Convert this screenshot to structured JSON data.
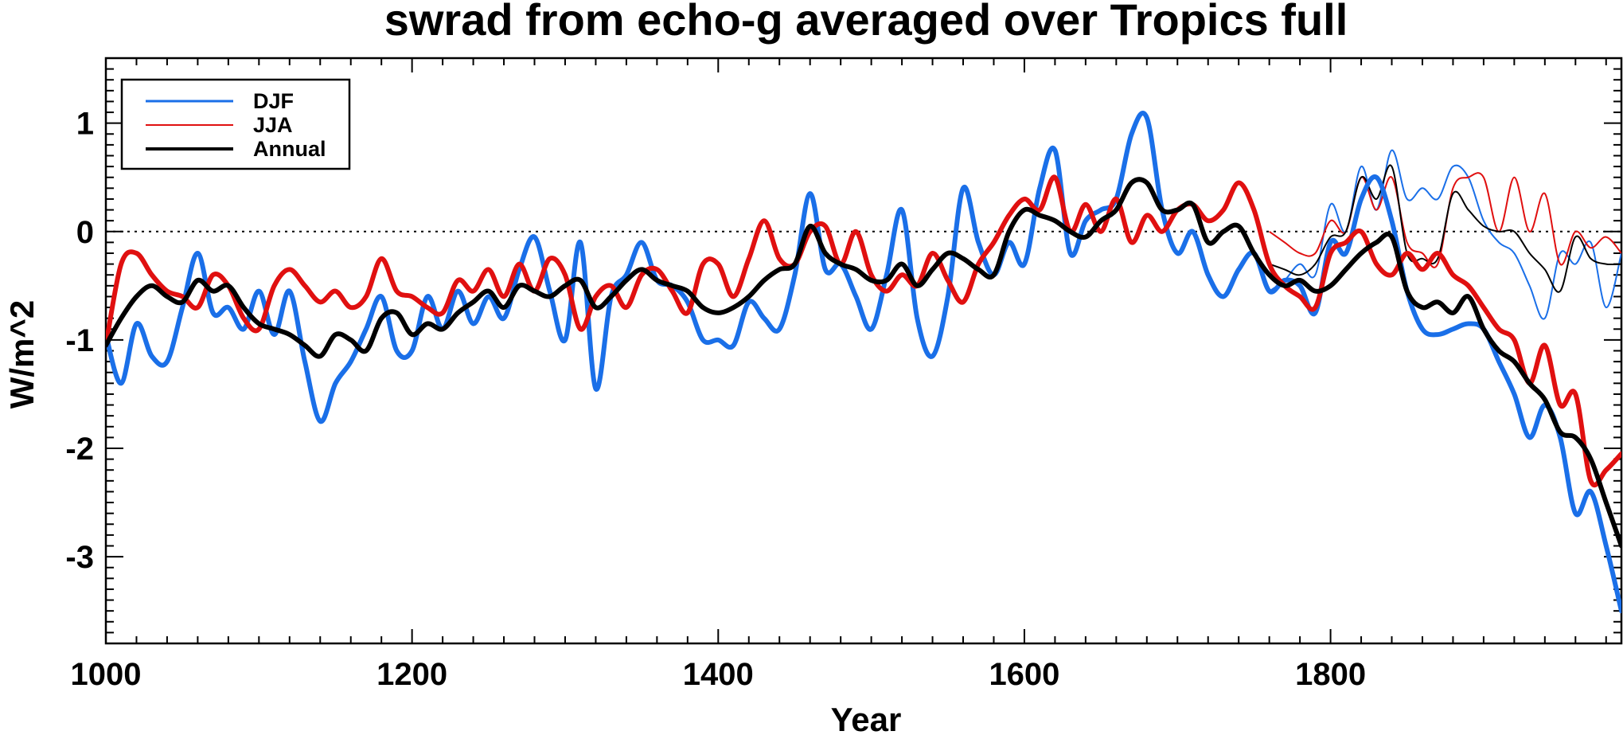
{
  "chart_data": {
    "type": "line",
    "title": "swrad from echo-g averaged over Tropics full",
    "xlabel": "Year",
    "ylabel": "W/m^2",
    "xlim": [
      1000,
      1990
    ],
    "ylim": [
      -3.8,
      1.6
    ],
    "xticks": [
      1000,
      1200,
      1400,
      1600,
      1800
    ],
    "yticks": [
      1,
      0,
      -1,
      -2,
      -3
    ],
    "zero_line": "dotted",
    "legend": {
      "position": "top-left",
      "entries": [
        "DJF",
        "JJA",
        "Annual"
      ]
    },
    "series": [
      {
        "name": "DJF",
        "color": "#1a6fe8",
        "x": [
          1000,
          1010,
          1020,
          1030,
          1040,
          1050,
          1060,
          1070,
          1080,
          1090,
          1100,
          1110,
          1120,
          1130,
          1140,
          1150,
          1160,
          1170,
          1180,
          1190,
          1200,
          1210,
          1220,
          1230,
          1240,
          1250,
          1260,
          1270,
          1280,
          1290,
          1300,
          1310,
          1320,
          1330,
          1340,
          1350,
          1360,
          1370,
          1380,
          1390,
          1400,
          1410,
          1420,
          1430,
          1440,
          1450,
          1460,
          1470,
          1480,
          1490,
          1500,
          1510,
          1520,
          1530,
          1540,
          1550,
          1560,
          1570,
          1580,
          1590,
          1600,
          1610,
          1620,
          1630,
          1640,
          1650,
          1660,
          1670,
          1680,
          1690,
          1700,
          1710,
          1720,
          1730,
          1740,
          1750,
          1760,
          1770,
          1780,
          1790,
          1800,
          1810,
          1820,
          1830,
          1840,
          1850,
          1860,
          1870,
          1880,
          1890,
          1900,
          1910,
          1920,
          1930,
          1940,
          1950,
          1960,
          1970,
          1980,
          1990
        ],
        "values": [
          -0.95,
          -1.4,
          -0.85,
          -1.15,
          -1.2,
          -0.7,
          -0.2,
          -0.75,
          -0.7,
          -0.9,
          -0.55,
          -0.95,
          -0.55,
          -1.2,
          -1.75,
          -1.4,
          -1.2,
          -0.9,
          -0.6,
          -1.1,
          -1.1,
          -0.6,
          -0.9,
          -0.55,
          -0.85,
          -0.6,
          -0.8,
          -0.35,
          -0.05,
          -0.55,
          -1.0,
          -0.1,
          -1.45,
          -0.6,
          -0.4,
          -0.1,
          -0.45,
          -0.5,
          -0.65,
          -1.0,
          -1.0,
          -1.05,
          -0.65,
          -0.8,
          -0.9,
          -0.4,
          0.35,
          -0.35,
          -0.3,
          -0.6,
          -0.9,
          -0.4,
          0.2,
          -0.8,
          -1.15,
          -0.6,
          0.4,
          -0.1,
          -0.4,
          -0.1,
          -0.3,
          0.4,
          0.75,
          -0.2,
          0.1,
          0.2,
          0.3,
          0.9,
          1.05,
          0.2,
          -0.2,
          0.0,
          -0.4,
          -0.6,
          -0.35,
          -0.2,
          -0.55,
          -0.45,
          -0.5,
          -0.75,
          -0.1,
          -0.2,
          0.3,
          0.5,
          0.1,
          -0.55,
          -0.9,
          -0.95,
          -0.9,
          -0.85,
          -0.9,
          -1.2,
          -1.5,
          -1.9,
          -1.6,
          -1.9,
          -2.6,
          -2.4,
          -2.9,
          -3.5
        ]
      },
      {
        "name": "JJA",
        "color": "#e01010",
        "x": [
          1000,
          1010,
          1020,
          1030,
          1040,
          1050,
          1060,
          1070,
          1080,
          1090,
          1100,
          1110,
          1120,
          1130,
          1140,
          1150,
          1160,
          1170,
          1180,
          1190,
          1200,
          1210,
          1220,
          1230,
          1240,
          1250,
          1260,
          1270,
          1280,
          1290,
          1300,
          1310,
          1320,
          1330,
          1340,
          1350,
          1360,
          1370,
          1380,
          1390,
          1400,
          1410,
          1420,
          1430,
          1440,
          1450,
          1460,
          1470,
          1480,
          1490,
          1500,
          1510,
          1520,
          1530,
          1540,
          1550,
          1560,
          1570,
          1580,
          1590,
          1600,
          1610,
          1620,
          1630,
          1640,
          1650,
          1660,
          1670,
          1680,
          1690,
          1700,
          1710,
          1720,
          1730,
          1740,
          1750,
          1760,
          1770,
          1780,
          1790,
          1800,
          1810,
          1820,
          1830,
          1840,
          1850,
          1860,
          1870,
          1880,
          1890,
          1900,
          1910,
          1920,
          1930,
          1940,
          1950,
          1960,
          1970,
          1980,
          1990
        ],
        "values": [
          -1.05,
          -0.3,
          -0.2,
          -0.4,
          -0.55,
          -0.6,
          -0.7,
          -0.4,
          -0.5,
          -0.8,
          -0.9,
          -0.5,
          -0.35,
          -0.5,
          -0.65,
          -0.55,
          -0.7,
          -0.6,
          -0.25,
          -0.55,
          -0.6,
          -0.7,
          -0.75,
          -0.45,
          -0.55,
          -0.35,
          -0.6,
          -0.3,
          -0.55,
          -0.25,
          -0.4,
          -0.9,
          -0.6,
          -0.5,
          -0.7,
          -0.4,
          -0.35,
          -0.55,
          -0.75,
          -0.3,
          -0.3,
          -0.6,
          -0.25,
          0.1,
          -0.25,
          -0.3,
          0.0,
          0.05,
          -0.3,
          0.0,
          -0.4,
          -0.55,
          -0.4,
          -0.5,
          -0.2,
          -0.45,
          -0.65,
          -0.3,
          -0.1,
          0.15,
          0.3,
          0.2,
          0.5,
          0.0,
          0.25,
          0.0,
          0.3,
          -0.1,
          0.15,
          0.0,
          0.2,
          0.25,
          0.1,
          0.2,
          0.45,
          0.2,
          -0.3,
          -0.5,
          -0.6,
          -0.7,
          -0.2,
          -0.1,
          0.0,
          -0.3,
          -0.4,
          -0.2,
          -0.35,
          -0.2,
          -0.4,
          -0.5,
          -0.7,
          -0.9,
          -1.0,
          -1.4,
          -1.05,
          -1.6,
          -1.5,
          -2.3,
          -2.2,
          -2.05
        ]
      },
      {
        "name": "Annual",
        "color": "#000000",
        "x": [
          1000,
          1010,
          1020,
          1030,
          1040,
          1050,
          1060,
          1070,
          1080,
          1090,
          1100,
          1110,
          1120,
          1130,
          1140,
          1150,
          1160,
          1170,
          1180,
          1190,
          1200,
          1210,
          1220,
          1230,
          1240,
          1250,
          1260,
          1270,
          1280,
          1290,
          1300,
          1310,
          1320,
          1330,
          1340,
          1350,
          1360,
          1370,
          1380,
          1390,
          1400,
          1410,
          1420,
          1430,
          1440,
          1450,
          1460,
          1470,
          1480,
          1490,
          1500,
          1510,
          1520,
          1530,
          1540,
          1550,
          1560,
          1570,
          1580,
          1590,
          1600,
          1610,
          1620,
          1630,
          1640,
          1650,
          1660,
          1670,
          1680,
          1690,
          1700,
          1710,
          1720,
          1730,
          1740,
          1750,
          1760,
          1770,
          1780,
          1790,
          1800,
          1810,
          1820,
          1830,
          1840,
          1850,
          1860,
          1870,
          1880,
          1890,
          1900,
          1910,
          1920,
          1930,
          1940,
          1950,
          1960,
          1970,
          1980,
          1990
        ],
        "values": [
          -1.05,
          -0.8,
          -0.6,
          -0.5,
          -0.6,
          -0.65,
          -0.45,
          -0.55,
          -0.5,
          -0.7,
          -0.85,
          -0.9,
          -0.95,
          -1.05,
          -1.15,
          -0.95,
          -1.0,
          -1.1,
          -0.8,
          -0.75,
          -0.95,
          -0.85,
          -0.9,
          -0.75,
          -0.65,
          -0.55,
          -0.7,
          -0.5,
          -0.55,
          -0.6,
          -0.5,
          -0.45,
          -0.7,
          -0.6,
          -0.45,
          -0.35,
          -0.45,
          -0.5,
          -0.55,
          -0.7,
          -0.75,
          -0.7,
          -0.6,
          -0.45,
          -0.35,
          -0.3,
          0.05,
          -0.2,
          -0.3,
          -0.35,
          -0.45,
          -0.45,
          -0.3,
          -0.5,
          -0.35,
          -0.2,
          -0.25,
          -0.35,
          -0.4,
          0.0,
          0.2,
          0.15,
          0.1,
          0.0,
          -0.05,
          0.1,
          0.2,
          0.45,
          0.45,
          0.2,
          0.2,
          0.25,
          -0.1,
          0.0,
          0.05,
          -0.2,
          -0.4,
          -0.5,
          -0.45,
          -0.55,
          -0.5,
          -0.35,
          -0.2,
          -0.1,
          -0.05,
          -0.55,
          -0.7,
          -0.65,
          -0.75,
          -0.6,
          -0.9,
          -1.1,
          -1.2,
          -1.4,
          -1.55,
          -1.85,
          -1.9,
          -2.1,
          -2.5,
          -2.9
        ]
      }
    ],
    "thin_series": [
      {
        "name": "DJF",
        "color": "#1a6fe8",
        "x": [
          1760,
          1770,
          1780,
          1790,
          1800,
          1810,
          1820,
          1830,
          1840,
          1850,
          1860,
          1870,
          1880,
          1890,
          1900,
          1910,
          1920,
          1930,
          1940,
          1950,
          1960,
          1970,
          1980,
          1990
        ],
        "values": [
          -0.55,
          -0.45,
          -0.3,
          -0.4,
          0.25,
          0.0,
          0.6,
          0.2,
          0.75,
          0.3,
          0.4,
          0.3,
          0.6,
          0.5,
          0.1,
          -0.1,
          -0.2,
          -0.5,
          -0.8,
          -0.2,
          -0.3,
          -0.1,
          -0.7,
          -0.2
        ]
      },
      {
        "name": "JJA",
        "color": "#e01010",
        "x": [
          1760,
          1770,
          1780,
          1790,
          1800,
          1810,
          1820,
          1830,
          1840,
          1850,
          1860,
          1870,
          1880,
          1890,
          1900,
          1910,
          1920,
          1930,
          1940,
          1950,
          1960,
          1970,
          1980,
          1990
        ],
        "values": [
          0.0,
          -0.1,
          -0.2,
          -0.2,
          0.1,
          0.0,
          0.5,
          0.2,
          0.5,
          -0.1,
          -0.2,
          -0.3,
          0.4,
          0.5,
          0.5,
          0.0,
          0.5,
          0.0,
          0.35,
          -0.3,
          0.0,
          -0.15,
          -0.05,
          -0.2
        ]
      },
      {
        "name": "Annual",
        "color": "#000000",
        "x": [
          1760,
          1770,
          1780,
          1790,
          1800,
          1810,
          1820,
          1830,
          1840,
          1850,
          1860,
          1870,
          1880,
          1890,
          1900,
          1910,
          1920,
          1930,
          1940,
          1950,
          1960,
          1970,
          1980,
          1990
        ],
        "values": [
          -0.3,
          -0.35,
          -0.4,
          -0.3,
          -0.05,
          0.0,
          0.5,
          0.3,
          0.6,
          -0.2,
          -0.25,
          -0.25,
          0.35,
          0.2,
          0.05,
          0.0,
          0.0,
          -0.2,
          -0.35,
          -0.55,
          -0.05,
          -0.25,
          -0.3,
          -0.3
        ]
      }
    ]
  }
}
